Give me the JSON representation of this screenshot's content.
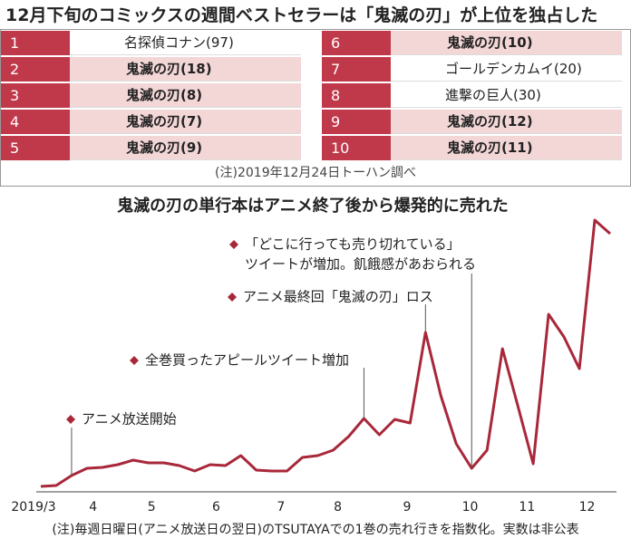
{
  "title": "12月下旬のコミックスの週間ベストセラーは「鬼滅の刃」が上位を独占した",
  "table": {
    "rows": [
      {
        "rank": 1,
        "title": "名探偵コナン(97)",
        "highlight": false
      },
      {
        "rank": 2,
        "title": "鬼滅の刃(18)",
        "highlight": true
      },
      {
        "rank": 3,
        "title": "鬼滅の刃(8)",
        "highlight": true
      },
      {
        "rank": 4,
        "title": "鬼滅の刃(7)",
        "highlight": true
      },
      {
        "rank": 5,
        "title": "鬼滅の刃(9)",
        "highlight": true
      },
      {
        "rank": 6,
        "title": "鬼滅の刃(10)",
        "highlight": true
      },
      {
        "rank": 7,
        "title": "ゴールデンカムイ(20)",
        "highlight": false
      },
      {
        "rank": 8,
        "title": "進撃の巨人(30)",
        "highlight": false
      },
      {
        "rank": 9,
        "title": "鬼滅の刃(12)",
        "highlight": true
      },
      {
        "rank": 10,
        "title": "鬼滅の刃(11)",
        "highlight": true
      }
    ],
    "note": "(注)2019年12月24日トーハン調べ"
  },
  "chart_data": {
    "type": "line",
    "title": "鬼滅の刃の単行本はアニメ終了後から爆発的に売れた",
    "note": "(注)毎週日曜日(アニメ放送日の翌日)のTSUTAYAでの1巻の売れ行きを指数化。実数は非公表",
    "color": "#a8283a",
    "x": [
      0,
      1,
      2,
      3,
      4,
      5,
      6,
      7,
      8,
      9,
      10,
      11,
      12,
      13,
      14,
      15,
      16,
      17,
      18,
      19,
      20,
      21,
      22,
      23,
      24,
      25,
      26,
      27,
      28,
      29,
      30,
      31,
      32,
      33,
      34,
      35,
      36,
      37
    ],
    "values": [
      3,
      4,
      15,
      23,
      24,
      27,
      32,
      29,
      29,
      26,
      20,
      27,
      26,
      37,
      21,
      20,
      20,
      35,
      37,
      43,
      58,
      78,
      60,
      77,
      73,
      173,
      103,
      50,
      23,
      43,
      155,
      92,
      28,
      193,
      168,
      133,
      297,
      282
    ],
    "xlim": [
      0,
      37
    ],
    "ylim": [
      0,
      310
    ],
    "xticks": [
      {
        "value": 0,
        "label": "2019/3"
      },
      {
        "value": 3.4,
        "label": "4"
      },
      {
        "value": 7.2,
        "label": "5"
      },
      {
        "value": 11.4,
        "label": "6"
      },
      {
        "value": 15.6,
        "label": "7"
      },
      {
        "value": 19.3,
        "label": "8"
      },
      {
        "value": 23.8,
        "label": "9"
      },
      {
        "value": 27.9,
        "label": "10"
      },
      {
        "value": 31.6,
        "label": "11"
      },
      {
        "value": 35.5,
        "label": "12"
      }
    ],
    "annotations": [
      {
        "lines": [
          "アニメ放送開始"
        ]
      },
      {
        "lines": [
          "全巻買ったアピールツイート増加"
        ]
      },
      {
        "lines": [
          "アニメ最終回「鬼滅の刃」ロス"
        ]
      },
      {
        "lines": [
          "「どこに行っても売り切れている」",
          "ツイートが増加。飢餓感があおられる"
        ]
      }
    ]
  }
}
